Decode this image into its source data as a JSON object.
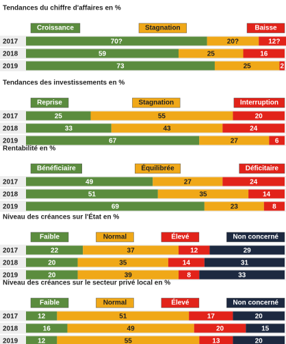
{
  "chart_data": [
    {
      "type": "bar",
      "orientation": "horizontal",
      "stacked": true,
      "title": "Tendances du chiffre d'affaires en %",
      "xlim": [
        0,
        100
      ],
      "categories": [
        "2017",
        "2018",
        "2019"
      ],
      "series": [
        {
          "name": "Croissance",
          "color": "#5b8c3e",
          "values": [
            70,
            59,
            73
          ],
          "value_labels": [
            "70?",
            "59",
            "73"
          ]
        },
        {
          "name": "Stagnation",
          "color": "#f0a818",
          "values": [
            20,
            25,
            25
          ],
          "value_labels": [
            "20?",
            "25",
            "25"
          ]
        },
        {
          "name": "Baisse",
          "color": "#e2231a",
          "values": [
            12,
            16,
            2
          ],
          "value_labels": [
            "12?",
            "16",
            "2"
          ]
        }
      ]
    },
    {
      "type": "bar",
      "orientation": "horizontal",
      "stacked": true,
      "title": "Tendances des investissements en %",
      "xlim": [
        0,
        100
      ],
      "categories": [
        "2017",
        "2018",
        "2019"
      ],
      "series": [
        {
          "name": "Reprise",
          "color": "#5b8c3e",
          "values": [
            25,
            33,
            67
          ]
        },
        {
          "name": "Stagnation",
          "color": "#f0a818",
          "values": [
            55,
            43,
            27
          ]
        },
        {
          "name": "Interruption",
          "color": "#e2231a",
          "values": [
            20,
            24,
            6
          ]
        }
      ]
    },
    {
      "type": "bar",
      "orientation": "horizontal",
      "stacked": true,
      "title": "Rentabilité en %",
      "xlim": [
        0,
        100
      ],
      "categories": [
        "2017",
        "2018",
        "2019"
      ],
      "series": [
        {
          "name": "Bénéficiaire",
          "color": "#5b8c3e",
          "values": [
            49,
            51,
            69
          ]
        },
        {
          "name": "Équilibrée",
          "color": "#f0a818",
          "values": [
            27,
            35,
            23
          ]
        },
        {
          "name": "Déficitaire",
          "color": "#e2231a",
          "values": [
            24,
            14,
            8
          ]
        }
      ]
    },
    {
      "type": "bar",
      "orientation": "horizontal",
      "stacked": true,
      "title": "Niveau des créances sur l'État en %",
      "xlim": [
        0,
        100
      ],
      "categories": [
        "2017",
        "2018",
        "2019"
      ],
      "series": [
        {
          "name": "Faible",
          "color": "#5b8c3e",
          "values": [
            22,
            20,
            20
          ]
        },
        {
          "name": "Normal",
          "color": "#f0a818",
          "values": [
            37,
            35,
            39
          ]
        },
        {
          "name": "Élevé",
          "color": "#e2231a",
          "values": [
            12,
            14,
            8
          ]
        },
        {
          "name": "Non concerné",
          "color": "#1d2940",
          "values": [
            29,
            31,
            33
          ]
        }
      ]
    },
    {
      "type": "bar",
      "orientation": "horizontal",
      "stacked": true,
      "title": "Niveau des créances sur le secteur privé local en %",
      "xlim": [
        0,
        100
      ],
      "categories": [
        "2017",
        "2018",
        "2019"
      ],
      "series": [
        {
          "name": "Faible",
          "color": "#5b8c3e",
          "values": [
            12,
            16,
            12
          ]
        },
        {
          "name": "Normal",
          "color": "#f0a818",
          "values": [
            51,
            49,
            55
          ]
        },
        {
          "name": "Élevé",
          "color": "#e2231a",
          "values": [
            17,
            20,
            13
          ]
        },
        {
          "name": "Non concerné",
          "color": "#1d2940",
          "values": [
            20,
            15,
            20
          ]
        }
      ]
    }
  ]
}
